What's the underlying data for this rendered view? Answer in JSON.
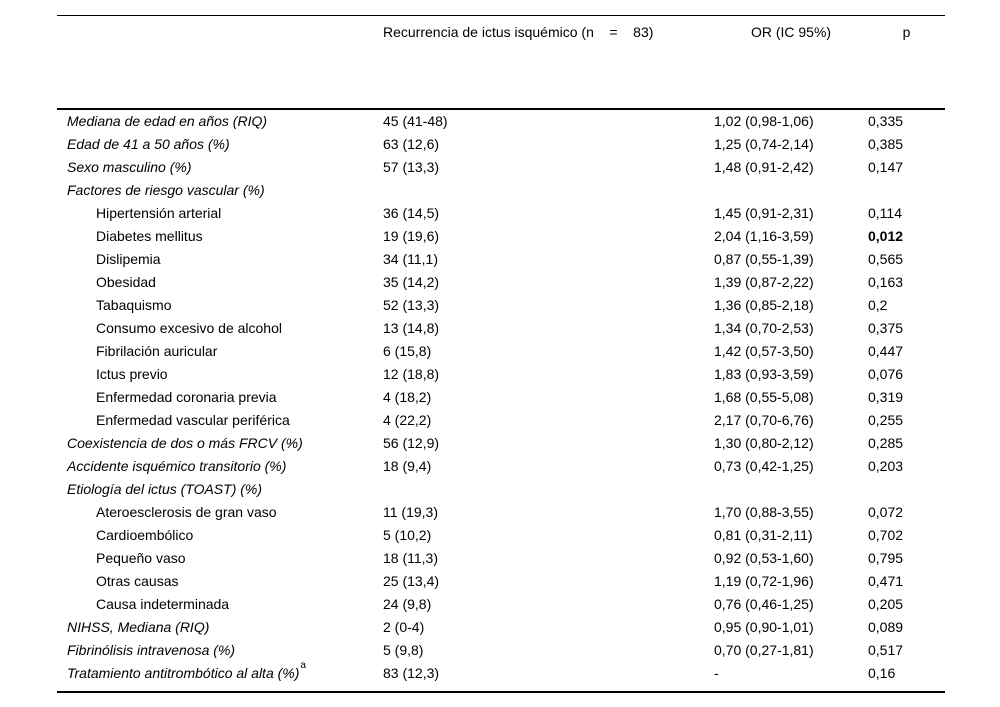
{
  "page": {
    "background_color": "#ffffff",
    "text_color": "#000000",
    "rule_color": "#000000"
  },
  "table": {
    "header": {
      "recurrence_label": "Recurrencia de ictus isquémico (n    =    83)",
      "or_label": "OR (IC 95%)",
      "p_label": "p"
    },
    "rows": [
      {
        "label": "Mediana de edad en años (RIQ)",
        "italic": true,
        "indent": false,
        "sup": "",
        "n": "45 (41-48)",
        "or": "1,02 (0,98-1,06)",
        "p": "0,335",
        "p_bold": false
      },
      {
        "label": "Edad de 41 a 50 años (%)",
        "italic": true,
        "indent": false,
        "sup": "",
        "n": "63 (12,6)",
        "or": "1,25 (0,74-2,14)",
        "p": "0,385",
        "p_bold": false
      },
      {
        "label": "Sexo masculino (%)",
        "italic": true,
        "indent": false,
        "sup": "",
        "n": "57 (13,3)",
        "or": "1,48 (0,91-2,42)",
        "p": "0,147",
        "p_bold": false
      },
      {
        "label": "Factores de riesgo vascular (%)",
        "italic": true,
        "indent": false,
        "sup": "",
        "n": "",
        "or": "",
        "p": "",
        "p_bold": false
      },
      {
        "label": "Hipertensión arterial",
        "italic": false,
        "indent": true,
        "sup": "",
        "n": "36 (14,5)",
        "or": "1,45 (0,91-2,31)",
        "p": "0,114",
        "p_bold": false
      },
      {
        "label": "Diabetes mellitus",
        "italic": false,
        "indent": true,
        "sup": "",
        "n": "19 (19,6)",
        "or": "2,04 (1,16-3,59)",
        "p": "0,012",
        "p_bold": true
      },
      {
        "label": "Dislipemia",
        "italic": false,
        "indent": true,
        "sup": "",
        "n": "34 (11,1)",
        "or": "0,87 (0,55-1,39)",
        "p": "0,565",
        "p_bold": false
      },
      {
        "label": "Obesidad",
        "italic": false,
        "indent": true,
        "sup": "",
        "n": "35 (14,2)",
        "or": "1,39 (0,87-2,22)",
        "p": "0,163",
        "p_bold": false
      },
      {
        "label": "Tabaquismo",
        "italic": false,
        "indent": true,
        "sup": "",
        "n": "52 (13,3)",
        "or": "1,36 (0,85-2,18)",
        "p": "0,2",
        "p_bold": false
      },
      {
        "label": "Consumo excesivo de alcohol",
        "italic": false,
        "indent": true,
        "sup": "",
        "n": "13 (14,8)",
        "or": "1,34 (0,70-2,53)",
        "p": "0,375",
        "p_bold": false
      },
      {
        "label": "Fibrilación auricular",
        "italic": false,
        "indent": true,
        "sup": "",
        "n": "6 (15,8)",
        "or": "1,42 (0,57-3,50)",
        "p": "0,447",
        "p_bold": false
      },
      {
        "label": "Ictus previo",
        "italic": false,
        "indent": true,
        "sup": "",
        "n": "12 (18,8)",
        "or": "1,83 (0,93-3,59)",
        "p": "0,076",
        "p_bold": false
      },
      {
        "label": "Enfermedad coronaria previa",
        "italic": false,
        "indent": true,
        "sup": "",
        "n": "4 (18,2)",
        "or": "1,68 (0,55-5,08)",
        "p": "0,319",
        "p_bold": false
      },
      {
        "label": "Enfermedad vascular periférica",
        "italic": false,
        "indent": true,
        "sup": "",
        "n": "4 (22,2)",
        "or": "2,17 (0,70-6,76)",
        "p": "0,255",
        "p_bold": false
      },
      {
        "label": "Coexistencia de dos o más FRCV (%)",
        "italic": true,
        "indent": false,
        "sup": "",
        "n": "56 (12,9)",
        "or": "1,30 (0,80-2,12)",
        "p": "0,285",
        "p_bold": false
      },
      {
        "label": "Accidente isquémico transitorio (%)",
        "italic": true,
        "indent": false,
        "sup": "",
        "n": "18 (9,4)",
        "or": "0,73 (0,42-1,25)",
        "p": "0,203",
        "p_bold": false
      },
      {
        "label": "Etiología del ictus (TOAST) (%)",
        "italic": true,
        "indent": false,
        "sup": "",
        "n": "",
        "or": "",
        "p": "",
        "p_bold": false
      },
      {
        "label": "Ateroesclerosis de gran vaso",
        "italic": false,
        "indent": true,
        "sup": "",
        "n": "11 (19,3)",
        "or": "1,70 (0,88-3,55)",
        "p": "0,072",
        "p_bold": false
      },
      {
        "label": "Cardioembólico",
        "italic": false,
        "indent": true,
        "sup": "",
        "n": "5 (10,2)",
        "or": "0,81 (0,31-2,11)",
        "p": "0,702",
        "p_bold": false
      },
      {
        "label": "Pequeño vaso",
        "italic": false,
        "indent": true,
        "sup": "",
        "n": "18 (11,3)",
        "or": "0,92 (0,53-1,60)",
        "p": "0,795",
        "p_bold": false
      },
      {
        "label": "Otras causas",
        "italic": false,
        "indent": true,
        "sup": "",
        "n": "25 (13,4)",
        "or": "1,19 (0,72-1,96)",
        "p": "0,471",
        "p_bold": false
      },
      {
        "label": "Causa indeterminada",
        "italic": false,
        "indent": true,
        "sup": "",
        "n": "24 (9,8)",
        "or": "0,76 (0,46-1,25)",
        "p": "0,205",
        "p_bold": false
      },
      {
        "label": "NIHSS, Mediana (RIQ)",
        "italic": true,
        "indent": false,
        "sup": "",
        "n": "2 (0-4)",
        "or": "0,95 (0,90-1,01)",
        "p": "0,089",
        "p_bold": false
      },
      {
        "label": "Fibrinólisis intravenosa (%)",
        "italic": true,
        "indent": false,
        "sup": "",
        "n": "5 (9,8)",
        "or": "0,70 (0,27-1,81)",
        "p": "0,517",
        "p_bold": false
      },
      {
        "label": "Tratamiento antitrombótico al alta (%)",
        "italic": true,
        "indent": false,
        "sup": "a",
        "n": "83 (12,3)",
        "or": "-",
        "p": "0,16",
        "p_bold": false
      }
    ]
  }
}
